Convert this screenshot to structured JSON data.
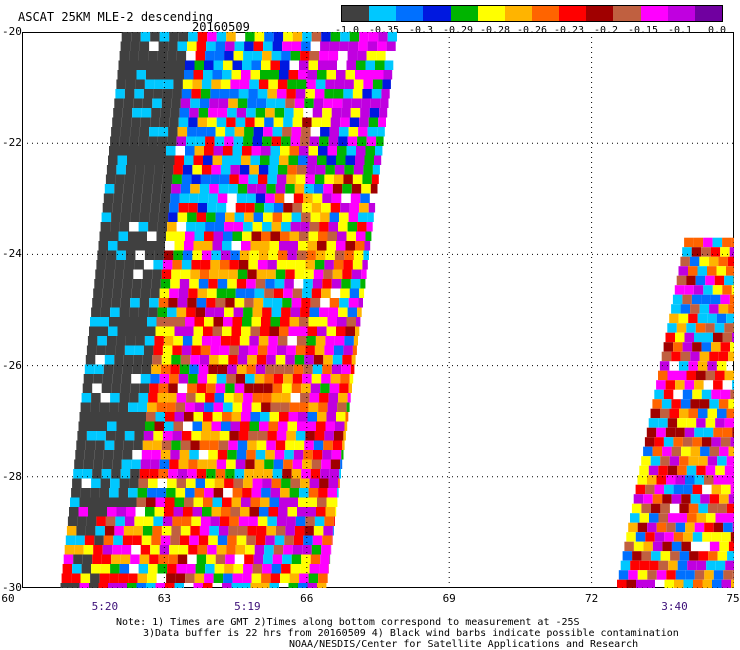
{
  "title": "ASCAT 25KM MLE-2 descending",
  "date": "20160509",
  "colorbar": {
    "colors": [
      "#404040",
      "#00c8ff",
      "#0070ff",
      "#0018e0",
      "#00b400",
      "#ffff00",
      "#ffb400",
      "#ff6400",
      "#ff0000",
      "#a00000",
      "#c06040",
      "#ff00ff",
      "#c000e0",
      "#7000a0"
    ],
    "labels": [
      "-1.0",
      "-0.35",
      "-0.3",
      "-0.29",
      "-0.28",
      "-0.26",
      "-0.23",
      "-0.2",
      "-0.15",
      "-0.1",
      "0.0"
    ]
  },
  "map": {
    "lon_range": [
      60,
      75
    ],
    "lat_range": [
      -30,
      -20
    ],
    "lon_ticks": [
      "60",
      "63",
      "66",
      "69",
      "72",
      "75"
    ],
    "lat_ticks": [
      "-20",
      "-22",
      "-24",
      "-26",
      "-28",
      "-30"
    ],
    "time_labels": [
      {
        "lon": 62,
        "text": "5:20"
      },
      {
        "lon": 65,
        "text": "5:19"
      },
      {
        "lon": 74,
        "text": "3:40"
      }
    ],
    "gridline_style": "dotted",
    "swaths": [
      {
        "west_top_lon": 62.1,
        "east_top_lon": 67.9,
        "west_bottom_lon": 60.8,
        "east_bottom_lon": 66.4
      },
      {
        "west_top_lon": 74.8,
        "east_top_lon": 75.0,
        "west_bottom_lon": 72.5,
        "east_bottom_lon": 75.0,
        "top_lat": -23.7
      }
    ]
  },
  "notes": [
    "Note: 1) Times are GMT 2)Times along bottom correspond to measurement at -25S",
    "3)Data buffer is 22 hrs from 20160509 4) Black wind barbs indicate possible contamination",
    "NOAA/NESDIS/Center for Satellite Applications and Research"
  ]
}
